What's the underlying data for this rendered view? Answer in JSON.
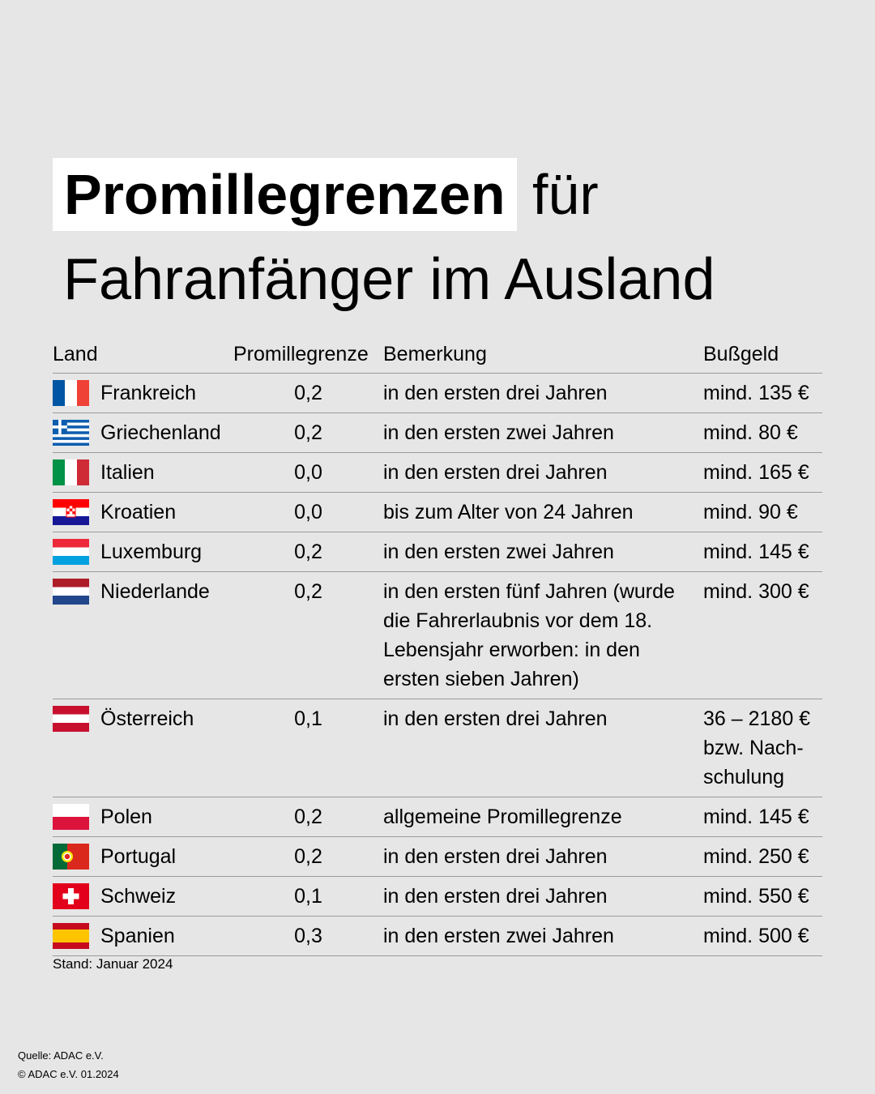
{
  "header": {
    "title_highlight": "Promillegrenzen",
    "title_rest": "für",
    "title_line2": "Fahranfänger im Ausland"
  },
  "table": {
    "columns": [
      "Land",
      "Promillegrenze",
      "Bemerkung",
      "Bußgeld"
    ],
    "rows": [
      [
        "Frankreich",
        "0,2",
        "in den ersten drei Jahren",
        "mind. 135 €"
      ],
      [
        "Griechenland",
        "0,2",
        "in den ersten zwei Jahren",
        "mind. 80 €"
      ],
      [
        "Italien",
        "0,0",
        "in den ersten drei Jahren",
        "mind. 165 €"
      ],
      [
        "Kroatien",
        "0,0",
        "bis zum Alter von 24 Jahren",
        "mind. 90 €"
      ],
      [
        "Luxemburg",
        "0,2",
        "in den ersten zwei Jahren",
        "mind. 145 €"
      ],
      [
        "Niederlande",
        "0,2",
        "in den ersten fünf Jahren (wurde die Fahrerlaubnis vor dem 18. Lebensjahr erworben: in den ersten sieben Jahren)",
        "mind. 300 €"
      ],
      [
        "Österreich",
        "0,1",
        "in den ersten drei Jahren",
        "36 – 2180 € bzw. Nach­schulung"
      ],
      [
        "Polen",
        "0,2",
        "allgemeine Promillegrenze",
        "mind. 145 €"
      ],
      [
        "Portugal",
        "0,2",
        "in den ersten drei Jahren",
        "mind. 250 €"
      ],
      [
        "Schweiz",
        "0,1",
        "in den ersten drei Jahren",
        "mind. 550 €"
      ],
      [
        "Spanien",
        "0,3",
        "in den ersten zwei Jahren",
        "mind. 500 €"
      ]
    ]
  },
  "footnote": "Stand: Januar 2024",
  "source": "Quelle: ADAC e.V.",
  "copyright": "© ADAC e.V. 01.2024"
}
